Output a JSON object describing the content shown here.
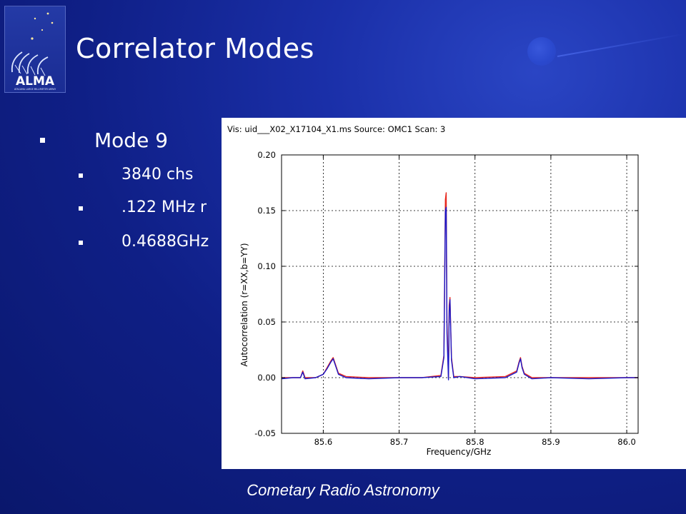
{
  "slide": {
    "title": "Correlator Modes",
    "footer": "Cometary Radio Astronomy"
  },
  "logo": {
    "text": "ALMA",
    "subtext": "ATACAMA LARGE MILLIMETER ARRAY",
    "icon": "alma-logo-icon"
  },
  "bullets": {
    "main": "Mode 9",
    "items": [
      "3840 chs",
      ".122 MHz r",
      "0.4688GHz"
    ]
  },
  "chart_data": {
    "type": "line",
    "title": "Vis: uid___X02_X17104_X1.ms Source: OMC1 Scan: 3",
    "xlabel": "Frequency/GHz",
    "ylabel": "Autocorrelation (r=XX,b=YY)",
    "xlim": [
      85.545,
      86.015
    ],
    "ylim": [
      -0.05,
      0.2
    ],
    "xticks": [
      85.6,
      85.7,
      85.8,
      85.9,
      86.0
    ],
    "xtick_labels": [
      "85.6",
      "85.7",
      "85.8",
      "85.9",
      "86.0"
    ],
    "yticks": [
      -0.05,
      0.0,
      0.05,
      0.1,
      0.15,
      0.2
    ],
    "ytick_labels": [
      "-0.05",
      "0.00",
      "0.05",
      "0.10",
      "0.15",
      "0.20"
    ],
    "grid": true,
    "series": [
      {
        "color": "#e8281e",
        "x": [
          85.545,
          85.56,
          85.57,
          85.573,
          85.576,
          85.59,
          85.6,
          85.605,
          85.61,
          85.613,
          85.616,
          85.62,
          85.63,
          85.66,
          85.7,
          85.73,
          85.755,
          85.759,
          85.761,
          85.762,
          85.763,
          85.765,
          85.766,
          85.767,
          85.769,
          85.772,
          85.78,
          85.8,
          85.84,
          85.855,
          85.858,
          85.86,
          85.862,
          85.865,
          85.875,
          85.9,
          85.95,
          86.0,
          86.015
        ],
        "y": [
          0.0,
          0.0,
          0.0,
          0.006,
          0.0,
          0.0,
          0.003,
          0.009,
          0.015,
          0.018,
          0.012,
          0.004,
          0.001,
          0.0,
          0.0,
          0.0,
          0.002,
          0.02,
          0.16,
          0.166,
          0.05,
          0.0,
          0.065,
          0.072,
          0.018,
          0.001,
          0.001,
          0.0,
          0.001,
          0.006,
          0.014,
          0.018,
          0.01,
          0.004,
          0.0,
          0.0,
          0.0,
          0.0,
          0.0
        ]
      },
      {
        "color": "#1a18c8",
        "x": [
          85.545,
          85.56,
          85.57,
          85.573,
          85.576,
          85.59,
          85.6,
          85.605,
          85.61,
          85.613,
          85.616,
          85.62,
          85.63,
          85.66,
          85.7,
          85.73,
          85.755,
          85.759,
          85.761,
          85.762,
          85.763,
          85.765,
          85.766,
          85.767,
          85.769,
          85.772,
          85.78,
          85.8,
          85.84,
          85.855,
          85.858,
          85.86,
          85.862,
          85.865,
          85.875,
          85.9,
          85.95,
          86.0,
          86.015
        ],
        "y": [
          -0.001,
          0.0,
          0.0,
          0.005,
          -0.001,
          0.0,
          0.003,
          0.008,
          0.014,
          0.017,
          0.011,
          0.003,
          0.0,
          -0.001,
          0.0,
          0.0,
          0.001,
          0.018,
          0.15,
          0.153,
          0.04,
          -0.002,
          0.06,
          0.07,
          0.016,
          0.0,
          0.001,
          -0.001,
          0.0,
          0.005,
          0.013,
          0.017,
          0.009,
          0.003,
          -0.001,
          0.0,
          -0.001,
          0.0,
          0.0
        ]
      }
    ]
  }
}
